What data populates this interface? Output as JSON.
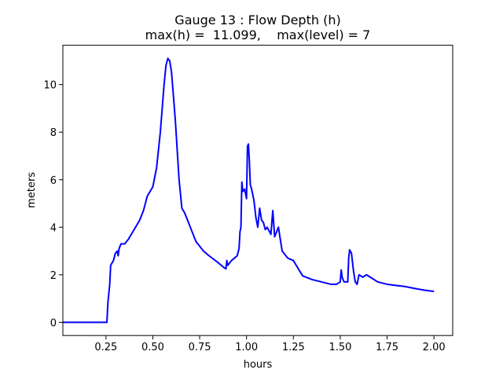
{
  "chart_data": {
    "type": "line",
    "title": "Gauge 13 : Flow Depth (h)",
    "subtitle": "max(h) =  11.099,    max(level) = 7",
    "x_label": "hours",
    "y_label": "meters",
    "color": "#0000ff",
    "x": [
      0.02,
      0.25,
      0.255,
      0.26,
      0.27,
      0.275,
      0.29,
      0.3,
      0.31,
      0.315,
      0.32,
      0.33,
      0.35,
      0.37,
      0.4,
      0.43,
      0.45,
      0.47,
      0.5,
      0.52,
      0.54,
      0.56,
      0.57,
      0.58,
      0.59,
      0.6,
      0.62,
      0.64,
      0.655,
      0.67,
      0.7,
      0.73,
      0.77,
      0.8,
      0.85,
      0.88,
      0.89,
      0.895,
      0.9,
      0.92,
      0.95,
      0.96,
      0.965,
      0.97,
      0.975,
      0.98,
      0.99,
      1.0,
      1.005,
      1.01,
      1.015,
      1.02,
      1.03,
      1.04,
      1.05,
      1.06,
      1.07,
      1.08,
      1.09,
      1.1,
      1.11,
      1.13,
      1.14,
      1.15,
      1.17,
      1.19,
      1.2,
      1.22,
      1.25,
      1.28,
      1.3,
      1.35,
      1.4,
      1.45,
      1.48,
      1.5,
      1.505,
      1.51,
      1.52,
      1.54,
      1.545,
      1.55,
      1.56,
      1.57,
      1.58,
      1.59,
      1.6,
      1.62,
      1.64,
      1.67,
      1.7,
      1.75,
      1.8,
      1.85,
      1.9,
      1.95,
      2.0
    ],
    "values": [
      0,
      0,
      0,
      0.8,
      1.6,
      2.4,
      2.6,
      2.9,
      3.0,
      2.8,
      3.1,
      3.3,
      3.3,
      3.5,
      3.9,
      4.3,
      4.7,
      5.3,
      5.7,
      6.5,
      8.0,
      10.0,
      10.8,
      11.099,
      11.0,
      10.5,
      8.5,
      6.0,
      4.8,
      4.6,
      4.0,
      3.4,
      3.0,
      2.8,
      2.5,
      2.3,
      2.25,
      2.6,
      2.4,
      2.6,
      2.8,
      3.1,
      3.8,
      4.0,
      5.9,
      5.5,
      5.6,
      5.2,
      7.4,
      7.5,
      6.8,
      5.8,
      5.5,
      5.1,
      4.4,
      4.0,
      4.8,
      4.3,
      4.2,
      3.9,
      4.0,
      3.7,
      4.7,
      3.6,
      4.0,
      3.0,
      2.9,
      2.7,
      2.6,
      2.2,
      1.95,
      1.8,
      1.7,
      1.6,
      1.6,
      1.7,
      2.2,
      1.9,
      1.7,
      1.7,
      2.7,
      3.05,
      2.9,
      2.2,
      1.7,
      1.6,
      2.0,
      1.9,
      2.0,
      1.85,
      1.7,
      1.6,
      1.55,
      1.5,
      1.42,
      1.35,
      1.3
    ],
    "xlim": [
      0.02,
      2.1
    ],
    "ylim": [
      -0.555,
      11.654
    ],
    "xticks": [
      0.25,
      {
        "value": 0.5,
        "label": "0.50"
      },
      0.75,
      {
        "value": 1.0,
        "label": "1.00"
      },
      1.25,
      {
        "value": 1.5,
        "label": "1.50"
      },
      1.75,
      {
        "value": 2.0,
        "label": "2.00"
      }
    ],
    "yticks": [
      0,
      2,
      4,
      6,
      8,
      10
    ]
  }
}
